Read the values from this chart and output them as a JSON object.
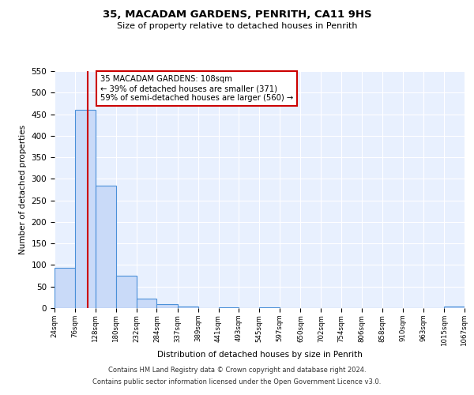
{
  "title": "35, MACADAM GARDENS, PENRITH, CA11 9HS",
  "subtitle": "Size of property relative to detached houses in Penrith",
  "xlabel": "Distribution of detached houses by size in Penrith",
  "ylabel": "Number of detached properties",
  "bin_edges": [
    24,
    76,
    128,
    180,
    232,
    284,
    337,
    389,
    441,
    493,
    545,
    597,
    650,
    702,
    754,
    806,
    858,
    910,
    963,
    1015,
    1067
  ],
  "bin_counts": [
    93,
    460,
    285,
    76,
    22,
    9,
    3,
    0,
    2,
    0,
    1,
    0,
    0,
    0,
    0,
    0,
    0,
    0,
    0,
    3
  ],
  "bar_color": "#c9daf8",
  "bar_edge_color": "#4a90d9",
  "property_size": 108,
  "annotation_title": "35 MACADAM GARDENS: 108sqm",
  "annotation_line1": "← 39% of detached houses are smaller (371)",
  "annotation_line2": "59% of semi-detached houses are larger (560) →",
  "annotation_box_color": "#ffffff",
  "annotation_box_edge": "#cc0000",
  "red_line_color": "#cc0000",
  "ylim": [
    0,
    550
  ],
  "yticks": [
    0,
    50,
    100,
    150,
    200,
    250,
    300,
    350,
    400,
    450,
    500,
    550
  ],
  "footer_line1": "Contains HM Land Registry data © Crown copyright and database right 2024.",
  "footer_line2": "Contains public sector information licensed under the Open Government Licence v3.0.",
  "bg_color": "#e8f0fe",
  "fig_bg_color": "#ffffff"
}
